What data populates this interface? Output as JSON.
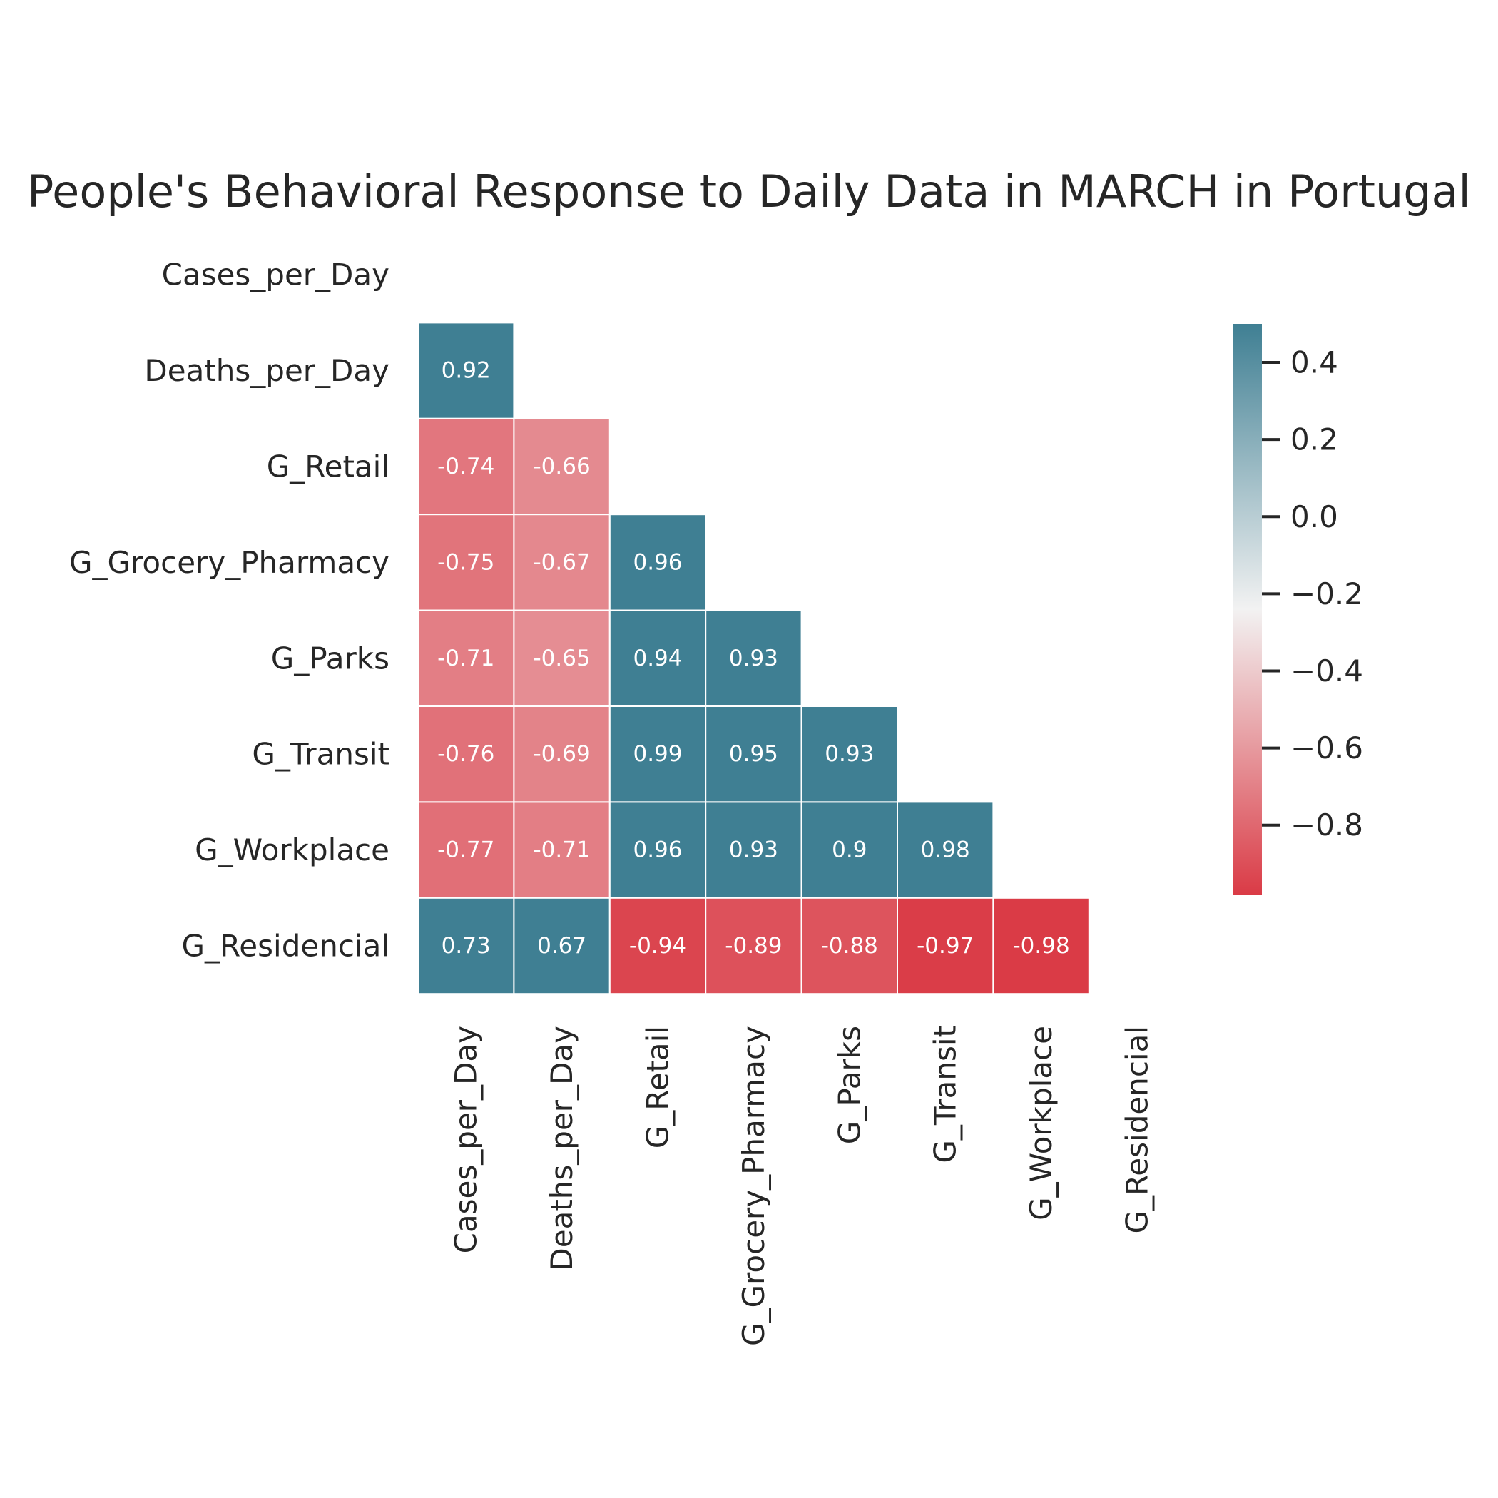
{
  "chart_data": {
    "type": "heatmap",
    "title": "People's Behavioral Response to Daily Data in MARCH in Portugal",
    "labels": [
      "Cases_per_Day",
      "Deaths_per_Day",
      "G_Retail",
      "G_Grocery_Pharmacy",
      "G_Parks",
      "G_Transit",
      "G_Workplace",
      "G_Residencial"
    ],
    "mask": "upper-triangle-including-diagonal",
    "matrix": [
      [],
      [
        0.92
      ],
      [
        -0.74,
        -0.66
      ],
      [
        -0.75,
        -0.67,
        0.96
      ],
      [
        -0.71,
        -0.65,
        0.94,
        0.93
      ],
      [
        -0.76,
        -0.69,
        0.99,
        0.95,
        0.93
      ],
      [
        -0.77,
        -0.71,
        0.96,
        0.93,
        0.9,
        0.98
      ],
      [
        0.73,
        0.67,
        -0.94,
        -0.89,
        -0.88,
        -0.97,
        -0.98
      ]
    ],
    "colorbar": {
      "min": -0.98,
      "max": 0.5,
      "ticks": [
        0.4,
        0.2,
        0.0,
        -0.2,
        -0.4,
        -0.6,
        -0.8
      ],
      "tick_labels": [
        "0.4",
        "0.2",
        "0.0",
        "−0.2",
        "−0.4",
        "−0.6",
        "−0.8"
      ]
    },
    "colors": {
      "positive": "#3f7f93",
      "center": "#f2f2f2",
      "negative": "#da3b46",
      "cell_border": "#ffffff",
      "annotation_text": "#ffffff"
    }
  }
}
